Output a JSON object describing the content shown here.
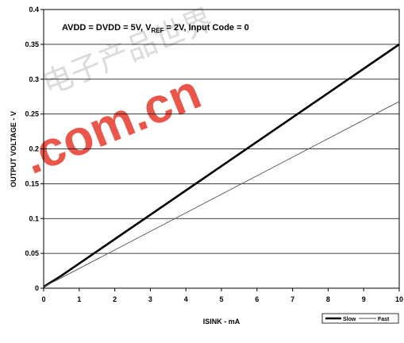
{
  "chart_data": {
    "type": "line",
    "annotation": {
      "parts": [
        "AVDD = DVDD = 5V, V",
        "REF",
        " = 2V, Input Code = 0"
      ]
    },
    "xlabel": "ISINK - mA",
    "ylabel": "OUTPUT VOLTAGE - V",
    "xlim": [
      0,
      10
    ],
    "ylim": [
      0,
      0.4
    ],
    "x_ticks": [
      "0",
      "1",
      "2",
      "3",
      "4",
      "5",
      "6",
      "7",
      "8",
      "9",
      "10"
    ],
    "y_ticks": [
      "0",
      "0.05",
      "0.1",
      "0.15",
      "0.2",
      "0.25",
      "0.3",
      "0.35",
      "0.4"
    ],
    "grid": "horizontal",
    "legend_position": "bottom-right",
    "series": [
      {
        "name": "Slow",
        "x": [
          0,
          0.5,
          10
        ],
        "y": [
          0.002,
          0.018,
          0.35
        ],
        "stroke": "#000000",
        "width": 2.6
      },
      {
        "name": "Fast",
        "x": [
          0,
          0.5,
          10
        ],
        "y": [
          0.002,
          0.015,
          0.268
        ],
        "stroke": "#555555",
        "width": 0.9
      }
    ]
  },
  "watermark": {
    "brand_text": ".com.cn",
    "cjk_text": "电子产品世界",
    "color": "#e8392c"
  }
}
